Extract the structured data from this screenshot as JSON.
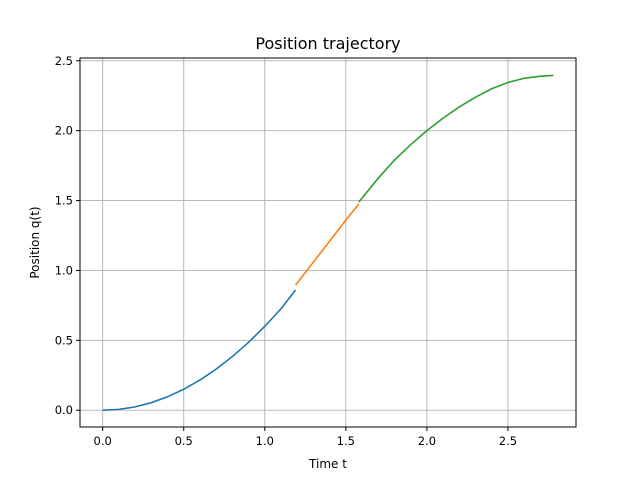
{
  "chart_data": {
    "type": "line",
    "title": "Position trajectory",
    "xlabel": "Time t",
    "ylabel": "Position q(t)",
    "xlim": [
      -0.14,
      2.92
    ],
    "ylim": [
      -0.12,
      2.52
    ],
    "x_ticks": [
      0.0,
      0.5,
      1.0,
      1.5,
      2.0,
      2.5
    ],
    "y_ticks": [
      0.0,
      0.5,
      1.0,
      1.5,
      2.0,
      2.5
    ],
    "x_tick_labels": [
      "0.0",
      "0.5",
      "1.0",
      "1.5",
      "2.0",
      "2.5"
    ],
    "y_tick_labels": [
      "0.0",
      "0.5",
      "1.0",
      "1.5",
      "2.0",
      "2.5"
    ],
    "grid": true,
    "series": [
      {
        "color": "#1f77b4",
        "x": [
          0.0,
          0.1,
          0.2,
          0.3,
          0.4,
          0.5,
          0.6,
          0.7,
          0.8,
          0.9,
          1.0,
          1.1,
          1.19
        ],
        "y": [
          0.0,
          0.006,
          0.024,
          0.054,
          0.096,
          0.15,
          0.216,
          0.294,
          0.384,
          0.486,
          0.6,
          0.726,
          0.86
        ]
      },
      {
        "color": "#ff7f0e",
        "x": [
          1.19,
          1.3,
          1.4,
          1.5,
          1.58
        ],
        "y": [
          0.895,
          1.06,
          1.21,
          1.36,
          1.475
        ]
      },
      {
        "color": "#2ca02c",
        "x": [
          1.58,
          1.7,
          1.8,
          1.9,
          2.0,
          2.1,
          2.2,
          2.3,
          2.4,
          2.5,
          2.6,
          2.7,
          2.78
        ],
        "y": [
          1.49,
          1.66,
          1.79,
          1.9,
          2.0,
          2.09,
          2.17,
          2.24,
          2.3,
          2.345,
          2.375,
          2.39,
          2.395
        ]
      }
    ]
  }
}
